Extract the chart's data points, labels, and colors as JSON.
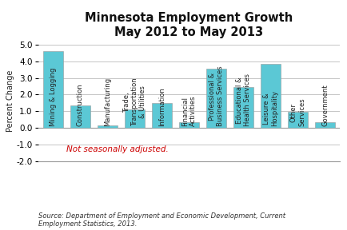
{
  "title": "Minnesota Employment Growth\nMay 2012 to May 2013",
  "categories": [
    "Mining & Logging",
    "Construction",
    "Manufacturing",
    "Trade,\nTransportation\n& Utilities",
    "Information",
    "Financial\nActivities",
    "Professional &\nBusiness Services",
    "Educational &\nHealth Services",
    "Leisure &\nHospitality",
    "Other\nServices",
    "Government"
  ],
  "values": [
    4.6,
    1.35,
    0.15,
    1.1,
    1.5,
    0.35,
    3.55,
    2.45,
    3.85,
    0.95,
    0.35
  ],
  "bar_color": "#5bc8d5",
  "ylabel": "Percent Change",
  "ylim": [
    -2.0,
    5.2
  ],
  "yticks": [
    -2.0,
    -1.0,
    0.0,
    1.0,
    2.0,
    3.0,
    4.0,
    5.0
  ],
  "note": "Not seasonally adjusted.",
  "note_color": "#cc0000",
  "source": "Source: Department of Employment and Economic Development, Current\nEmployment Statistics, 2013.",
  "background_color": "#ffffff",
  "grid_color": "#bbbbbb",
  "title_fontsize": 10.5,
  "label_fontsize": 6.0,
  "ylabel_fontsize": 7,
  "ytick_fontsize": 7.5,
  "note_fontsize": 7.5,
  "source_fontsize": 6.0
}
